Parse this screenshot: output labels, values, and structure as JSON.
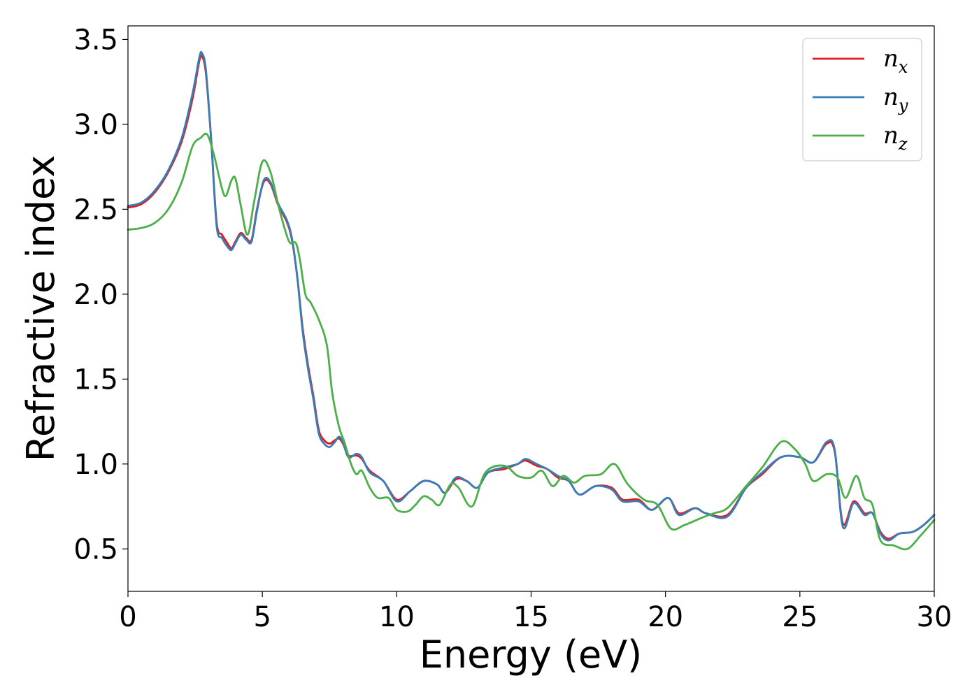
{
  "chart_data": {
    "type": "line",
    "title": "",
    "xlabel": "Energy (eV)",
    "ylabel": "Refractive index",
    "xlim": [
      0,
      30
    ],
    "ylim": [
      0.25,
      3.58
    ],
    "xticks": [
      0,
      5,
      10,
      15,
      20,
      25,
      30
    ],
    "xtick_labels": [
      "0",
      "5",
      "10",
      "15",
      "20",
      "25",
      "30"
    ],
    "yticks": [
      0.5,
      1.0,
      1.5,
      2.0,
      2.5,
      3.0,
      3.5
    ],
    "ytick_labels": [
      "0.5",
      "1.0",
      "1.5",
      "2.0",
      "2.5",
      "3.0",
      "3.5"
    ],
    "grid": false,
    "legend_position": "top-right",
    "series": [
      {
        "name": "n_x",
        "legend_base": "n",
        "legend_sub": "x",
        "color": "#e41a1c",
        "points": [
          [
            0,
            2.51
          ],
          [
            0.5,
            2.53
          ],
          [
            1,
            2.6
          ],
          [
            1.5,
            2.72
          ],
          [
            2,
            2.9
          ],
          [
            2.4,
            3.15
          ],
          [
            2.65,
            3.37
          ],
          [
            2.75,
            3.4
          ],
          [
            2.9,
            3.3
          ],
          [
            3.1,
            2.9
          ],
          [
            3.3,
            2.42
          ],
          [
            3.5,
            2.35
          ],
          [
            3.7,
            2.3
          ],
          [
            3.85,
            2.27
          ],
          [
            4,
            2.31
          ],
          [
            4.2,
            2.36
          ],
          [
            4.4,
            2.33
          ],
          [
            4.6,
            2.32
          ],
          [
            4.8,
            2.5
          ],
          [
            5.05,
            2.66
          ],
          [
            5.3,
            2.65
          ],
          [
            5.6,
            2.52
          ],
          [
            5.9,
            2.43
          ],
          [
            6.1,
            2.32
          ],
          [
            6.3,
            2.1
          ],
          [
            6.5,
            1.8
          ],
          [
            6.7,
            1.58
          ],
          [
            6.9,
            1.4
          ],
          [
            7.1,
            1.2
          ],
          [
            7.3,
            1.14
          ],
          [
            7.5,
            1.12
          ],
          [
            7.7,
            1.14
          ],
          [
            7.85,
            1.15
          ],
          [
            8,
            1.12
          ],
          [
            8.2,
            1.05
          ],
          [
            8.5,
            1.05
          ],
          [
            8.7,
            1.03
          ],
          [
            9,
            0.96
          ],
          [
            9.5,
            0.9
          ],
          [
            10,
            0.79
          ],
          [
            10.5,
            0.84
          ],
          [
            11,
            0.9
          ],
          [
            11.5,
            0.88
          ],
          [
            11.8,
            0.83
          ],
          [
            12.2,
            0.91
          ],
          [
            12.6,
            0.9
          ],
          [
            13,
            0.86
          ],
          [
            13.4,
            0.95
          ],
          [
            14,
            0.97
          ],
          [
            14.5,
            1.0
          ],
          [
            14.8,
            1.02
          ],
          [
            15.2,
            0.99
          ],
          [
            15.6,
            0.97
          ],
          [
            16,
            0.92
          ],
          [
            16.4,
            0.9
          ],
          [
            16.8,
            0.82
          ],
          [
            17.4,
            0.87
          ],
          [
            18,
            0.86
          ],
          [
            18.4,
            0.79
          ],
          [
            19,
            0.79
          ],
          [
            19.5,
            0.73
          ],
          [
            20.1,
            0.8
          ],
          [
            20.5,
            0.71
          ],
          [
            21.1,
            0.74
          ],
          [
            21.5,
            0.71
          ],
          [
            22.3,
            0.7
          ],
          [
            23,
            0.86
          ],
          [
            23.6,
            0.94
          ],
          [
            24.3,
            1.04
          ],
          [
            25,
            1.04
          ],
          [
            25.5,
            1.01
          ],
          [
            26,
            1.12
          ],
          [
            26.3,
            1.07
          ],
          [
            26.6,
            0.65
          ],
          [
            27,
            0.78
          ],
          [
            27.4,
            0.71
          ],
          [
            27.7,
            0.71
          ],
          [
            28,
            0.6
          ],
          [
            28.3,
            0.56
          ],
          [
            28.7,
            0.59
          ],
          [
            29.2,
            0.6
          ],
          [
            29.6,
            0.64
          ],
          [
            30,
            0.7
          ]
        ]
      },
      {
        "name": "n_y",
        "legend_base": "n",
        "legend_sub": "y",
        "color": "#377eb8",
        "points": [
          [
            0,
            2.52
          ],
          [
            0.5,
            2.54
          ],
          [
            1,
            2.61
          ],
          [
            1.5,
            2.73
          ],
          [
            2,
            2.92
          ],
          [
            2.4,
            3.18
          ],
          [
            2.65,
            3.39
          ],
          [
            2.75,
            3.42
          ],
          [
            2.9,
            3.32
          ],
          [
            3.1,
            2.9
          ],
          [
            3.3,
            2.4
          ],
          [
            3.5,
            2.33
          ],
          [
            3.7,
            2.28
          ],
          [
            3.85,
            2.26
          ],
          [
            4,
            2.3
          ],
          [
            4.2,
            2.35
          ],
          [
            4.4,
            2.32
          ],
          [
            4.6,
            2.31
          ],
          [
            4.8,
            2.49
          ],
          [
            5.05,
            2.67
          ],
          [
            5.3,
            2.66
          ],
          [
            5.6,
            2.53
          ],
          [
            5.9,
            2.44
          ],
          [
            6.1,
            2.33
          ],
          [
            6.3,
            2.1
          ],
          [
            6.5,
            1.78
          ],
          [
            6.7,
            1.56
          ],
          [
            6.9,
            1.38
          ],
          [
            7.1,
            1.18
          ],
          [
            7.3,
            1.12
          ],
          [
            7.5,
            1.1
          ],
          [
            7.7,
            1.13
          ],
          [
            7.85,
            1.16
          ],
          [
            8,
            1.13
          ],
          [
            8.2,
            1.04
          ],
          [
            8.5,
            1.06
          ],
          [
            8.7,
            1.04
          ],
          [
            9,
            0.95
          ],
          [
            9.5,
            0.9
          ],
          [
            10,
            0.78
          ],
          [
            10.5,
            0.84
          ],
          [
            11,
            0.9
          ],
          [
            11.5,
            0.88
          ],
          [
            11.8,
            0.83
          ],
          [
            12.2,
            0.92
          ],
          [
            12.6,
            0.9
          ],
          [
            13,
            0.86
          ],
          [
            13.4,
            0.95
          ],
          [
            14,
            0.98
          ],
          [
            14.5,
            1.0
          ],
          [
            14.8,
            1.03
          ],
          [
            15.2,
            1.0
          ],
          [
            15.6,
            0.97
          ],
          [
            16,
            0.93
          ],
          [
            16.4,
            0.9
          ],
          [
            16.8,
            0.82
          ],
          [
            17.4,
            0.87
          ],
          [
            18,
            0.85
          ],
          [
            18.4,
            0.78
          ],
          [
            19,
            0.78
          ],
          [
            19.5,
            0.73
          ],
          [
            20.1,
            0.8
          ],
          [
            20.5,
            0.7
          ],
          [
            21.1,
            0.74
          ],
          [
            21.5,
            0.71
          ],
          [
            22.3,
            0.69
          ],
          [
            23,
            0.86
          ],
          [
            23.6,
            0.95
          ],
          [
            24.3,
            1.04
          ],
          [
            25,
            1.04
          ],
          [
            25.5,
            1.01
          ],
          [
            26,
            1.13
          ],
          [
            26.3,
            1.08
          ],
          [
            26.6,
            0.63
          ],
          [
            27,
            0.77
          ],
          [
            27.4,
            0.7
          ],
          [
            27.7,
            0.71
          ],
          [
            28,
            0.59
          ],
          [
            28.3,
            0.55
          ],
          [
            28.7,
            0.59
          ],
          [
            29.2,
            0.6
          ],
          [
            29.6,
            0.64
          ],
          [
            30,
            0.7
          ]
        ]
      },
      {
        "name": "n_z",
        "legend_base": "n",
        "legend_sub": "z",
        "color": "#4daf4a",
        "points": [
          [
            0,
            2.38
          ],
          [
            0.5,
            2.39
          ],
          [
            1,
            2.42
          ],
          [
            1.5,
            2.5
          ],
          [
            2,
            2.66
          ],
          [
            2.4,
            2.87
          ],
          [
            2.7,
            2.92
          ],
          [
            2.95,
            2.94
          ],
          [
            3.2,
            2.82
          ],
          [
            3.5,
            2.62
          ],
          [
            3.65,
            2.58
          ],
          [
            3.85,
            2.67
          ],
          [
            4,
            2.68
          ],
          [
            4.2,
            2.52
          ],
          [
            4.45,
            2.35
          ],
          [
            4.7,
            2.55
          ],
          [
            5,
            2.78
          ],
          [
            5.3,
            2.72
          ],
          [
            5.6,
            2.52
          ],
          [
            5.9,
            2.35
          ],
          [
            6.05,
            2.3
          ],
          [
            6.25,
            2.3
          ],
          [
            6.4,
            2.2
          ],
          [
            6.6,
            2.0
          ],
          [
            6.8,
            1.95
          ],
          [
            7.1,
            1.85
          ],
          [
            7.4,
            1.7
          ],
          [
            7.6,
            1.42
          ],
          [
            7.85,
            1.22
          ],
          [
            8.05,
            1.13
          ],
          [
            8.3,
            1.0
          ],
          [
            8.5,
            0.94
          ],
          [
            8.7,
            0.96
          ],
          [
            9,
            0.86
          ],
          [
            9.3,
            0.8
          ],
          [
            9.7,
            0.8
          ],
          [
            10,
            0.73
          ],
          [
            10.4,
            0.72
          ],
          [
            10.7,
            0.76
          ],
          [
            11,
            0.81
          ],
          [
            11.3,
            0.79
          ],
          [
            11.6,
            0.76
          ],
          [
            12,
            0.88
          ],
          [
            12.3,
            0.86
          ],
          [
            12.8,
            0.75
          ],
          [
            13.3,
            0.95
          ],
          [
            14,
            0.99
          ],
          [
            14.5,
            0.93
          ],
          [
            15,
            0.92
          ],
          [
            15.4,
            0.96
          ],
          [
            15.8,
            0.87
          ],
          [
            16.2,
            0.93
          ],
          [
            16.6,
            0.89
          ],
          [
            17,
            0.93
          ],
          [
            17.6,
            0.94
          ],
          [
            18.1,
            1.0
          ],
          [
            18.6,
            0.88
          ],
          [
            19.2,
            0.79
          ],
          [
            19.7,
            0.76
          ],
          [
            20.2,
            0.62
          ],
          [
            20.7,
            0.64
          ],
          [
            21.3,
            0.68
          ],
          [
            21.8,
            0.71
          ],
          [
            22.3,
            0.74
          ],
          [
            23,
            0.87
          ],
          [
            23.6,
            0.98
          ],
          [
            24.3,
            1.13
          ],
          [
            24.8,
            1.09
          ],
          [
            25.2,
            1.0
          ],
          [
            25.5,
            0.9
          ],
          [
            26,
            0.94
          ],
          [
            26.4,
            0.92
          ],
          [
            26.7,
            0.8
          ],
          [
            27.1,
            0.93
          ],
          [
            27.4,
            0.8
          ],
          [
            27.7,
            0.76
          ],
          [
            28,
            0.55
          ],
          [
            28.5,
            0.52
          ],
          [
            29,
            0.5
          ],
          [
            29.5,
            0.58
          ],
          [
            30,
            0.67
          ]
        ]
      }
    ]
  }
}
